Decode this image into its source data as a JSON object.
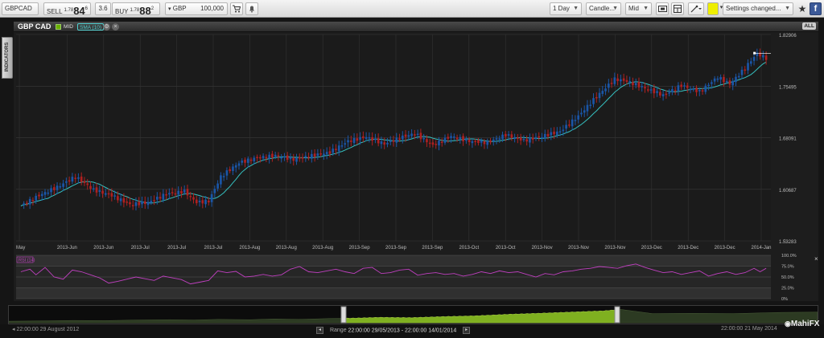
{
  "toolbar": {
    "symbol": "GBPCAD",
    "sell_label": "SELL",
    "sell_prefix": "1.78",
    "sell_big": "84",
    "sell_sup": "6",
    "spread": "3.6",
    "buy_label": "BUY",
    "buy_prefix": "1.78",
    "buy_big": "88",
    "buy_sup": "2",
    "currency": "GBP",
    "amount": "100,000",
    "interval": "1 Day",
    "chart_type": "Candle...",
    "price_type": "Mid",
    "settings": "Settings changed..."
  },
  "panel": {
    "symbol": "GBP CAD",
    "mid_label": "MID",
    "sma_label": "SMA (10)",
    "all_label": "ALL",
    "indicators_label": "INDICATORS"
  },
  "rsi": {
    "label": "RSI (14)"
  },
  "footer": {
    "start_date": "22:00:00 29 August 2012",
    "range_label": "Range",
    "range_value": "22:00:00 29/05/2013 - 22:00:00 14/01/2014",
    "end_date": "22:00:00 21 May 2014",
    "logo": "MahiFX"
  },
  "colors": {
    "up": "#1a56a8",
    "down": "#b02020",
    "sma": "#35c0c0",
    "rsi": "#c040c0",
    "nav_fill": "#7fb020"
  },
  "chart_data": {
    "type": "candlestick",
    "price_axis": [
      1.82906,
      1.75495,
      1.68091,
      1.60687,
      1.53283
    ],
    "y_range": [
      1.53283,
      1.82906
    ],
    "x_ticks": [
      "May",
      "2013-Jun",
      "2013-Jun",
      "2013-Jul",
      "2013-Jul",
      "2013-Jul",
      "2013-Aug",
      "2013-Aug",
      "2013-Aug",
      "2013-Sep",
      "2013-Sep",
      "2013-Sep",
      "2013-Oct",
      "2013-Oct",
      "2013-Nov",
      "2013-Nov",
      "2013-Nov",
      "2013-Dec",
      "2013-Dec",
      "2013-Dec",
      "2014-Jan"
    ],
    "close_anchors": [
      [
        0,
        1.583
      ],
      [
        6,
        1.598
      ],
      [
        12,
        1.61
      ],
      [
        18,
        1.625
      ],
      [
        24,
        1.606
      ],
      [
        30,
        1.598
      ],
      [
        36,
        1.585
      ],
      [
        42,
        1.588
      ],
      [
        48,
        1.6
      ],
      [
        54,
        1.604
      ],
      [
        58,
        1.588
      ],
      [
        62,
        1.59
      ],
      [
        66,
        1.625
      ],
      [
        72,
        1.645
      ],
      [
        78,
        1.652
      ],
      [
        84,
        1.655
      ],
      [
        90,
        1.65
      ],
      [
        96,
        1.655
      ],
      [
        102,
        1.66
      ],
      [
        108,
        1.676
      ],
      [
        114,
        1.682
      ],
      [
        120,
        1.672
      ],
      [
        126,
        1.682
      ],
      [
        130,
        1.687
      ],
      [
        136,
        1.67
      ],
      [
        142,
        1.683
      ],
      [
        148,
        1.676
      ],
      [
        154,
        1.674
      ],
      [
        160,
        1.685
      ],
      [
        166,
        1.677
      ],
      [
        172,
        1.683
      ],
      [
        178,
        1.69
      ],
      [
        184,
        1.712
      ],
      [
        190,
        1.74
      ],
      [
        196,
        1.765
      ],
      [
        200,
        1.762
      ],
      [
        206,
        1.752
      ],
      [
        212,
        1.742
      ],
      [
        218,
        1.756
      ],
      [
        224,
        1.747
      ],
      [
        230,
        1.768
      ],
      [
        234,
        1.758
      ],
      [
        238,
        1.776
      ],
      [
        243,
        1.802
      ],
      [
        246,
        1.795
      ]
    ],
    "sma_period": 10,
    "rsi_axis": [
      "100.0%",
      "75.0%",
      "50.0%",
      "25.0%",
      "0%"
    ],
    "rsi_anchors": [
      [
        0,
        62
      ],
      [
        3,
        68
      ],
      [
        5,
        55
      ],
      [
        8,
        72
      ],
      [
        11,
        50
      ],
      [
        14,
        45
      ],
      [
        17,
        66
      ],
      [
        20,
        62
      ],
      [
        23,
        55
      ],
      [
        26,
        48
      ],
      [
        29,
        36
      ],
      [
        32,
        40
      ],
      [
        35,
        45
      ],
      [
        38,
        50
      ],
      [
        41,
        46
      ],
      [
        44,
        42
      ],
      [
        47,
        52
      ],
      [
        50,
        48
      ],
      [
        53,
        44
      ],
      [
        56,
        34
      ],
      [
        59,
        38
      ],
      [
        62,
        42
      ],
      [
        65,
        64
      ],
      [
        68,
        60
      ],
      [
        71,
        63
      ],
      [
        74,
        50
      ],
      [
        77,
        52
      ],
      [
        80,
        56
      ],
      [
        83,
        52
      ],
      [
        86,
        55
      ],
      [
        89,
        68
      ],
      [
        92,
        74
      ],
      [
        95,
        62
      ],
      [
        98,
        60
      ],
      [
        101,
        64
      ],
      [
        104,
        68
      ],
      [
        107,
        62
      ],
      [
        110,
        58
      ],
      [
        113,
        70
      ],
      [
        116,
        72
      ],
      [
        119,
        58
      ],
      [
        122,
        60
      ],
      [
        125,
        66
      ],
      [
        128,
        68
      ],
      [
        131,
        54
      ],
      [
        134,
        58
      ],
      [
        137,
        60
      ],
      [
        140,
        56
      ],
      [
        143,
        58
      ],
      [
        146,
        52
      ],
      [
        149,
        56
      ],
      [
        152,
        62
      ],
      [
        155,
        58
      ],
      [
        158,
        64
      ],
      [
        161,
        60
      ],
      [
        164,
        62
      ],
      [
        167,
        56
      ],
      [
        170,
        50
      ],
      [
        173,
        58
      ],
      [
        176,
        55
      ],
      [
        179,
        62
      ],
      [
        182,
        64
      ],
      [
        185,
        68
      ],
      [
        188,
        70
      ],
      [
        191,
        74
      ],
      [
        194,
        72
      ],
      [
        197,
        70
      ],
      [
        200,
        76
      ],
      [
        203,
        80
      ],
      [
        206,
        72
      ],
      [
        209,
        66
      ],
      [
        212,
        60
      ],
      [
        215,
        62
      ],
      [
        218,
        56
      ],
      [
        221,
        60
      ],
      [
        224,
        64
      ],
      [
        227,
        52
      ],
      [
        230,
        58
      ],
      [
        233,
        62
      ],
      [
        236,
        56
      ],
      [
        239,
        60
      ],
      [
        242,
        70
      ],
      [
        244,
        62
      ],
      [
        246,
        70
      ]
    ],
    "nav_anchors": [
      [
        0,
        0.1
      ],
      [
        40,
        0.12
      ],
      [
        80,
        0.15
      ],
      [
        120,
        0.14
      ],
      [
        160,
        0.18
      ],
      [
        200,
        0.2
      ],
      [
        230,
        0.18
      ],
      [
        260,
        0.22
      ],
      [
        300,
        0.2
      ],
      [
        330,
        0.25
      ],
      [
        360,
        0.22
      ],
      [
        400,
        0.28
      ],
      [
        430,
        0.3
      ],
      [
        460,
        0.35
      ],
      [
        500,
        0.33
      ],
      [
        540,
        0.4
      ],
      [
        580,
        0.45
      ],
      [
        620,
        0.55
      ],
      [
        660,
        0.62
      ],
      [
        700,
        0.7
      ],
      [
        740,
        0.78
      ],
      [
        760,
        0.88
      ],
      [
        800,
        0.6
      ],
      [
        850,
        0.62
      ],
      [
        900,
        0.6
      ],
      [
        960,
        0.68
      ],
      [
        1005,
        0.7
      ]
    ]
  }
}
